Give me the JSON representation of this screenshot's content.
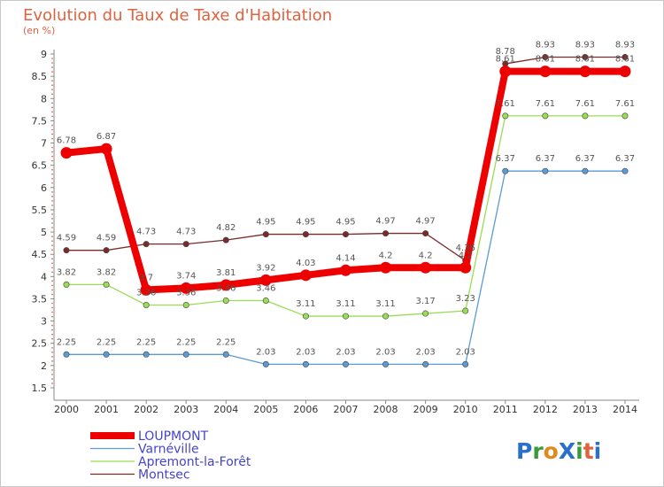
{
  "chart_data": {
    "type": "line",
    "title": "Evolution du Taux de Taxe d'Habitation",
    "subtitle": "(en %)",
    "x": [
      "2000",
      "2001",
      "2002",
      "2003",
      "2004",
      "2005",
      "2006",
      "2007",
      "2008",
      "2009",
      "2010",
      "2011",
      "2012",
      "2013",
      "2014"
    ],
    "yticks": [
      "1.5",
      "2",
      "2.5",
      "3",
      "3.5",
      "4",
      "4.5",
      "5",
      "5.5",
      "6",
      "6.5",
      "7",
      "7.5",
      "8",
      "8.5",
      "9"
    ],
    "ylim": [
      1.5,
      9
    ],
    "grid": false,
    "legend_position": "bottom-left",
    "series": [
      {
        "name": "LOUPMONT",
        "color": "#ee0000",
        "values": [
          6.78,
          6.87,
          3.7,
          3.74,
          3.81,
          3.92,
          4.03,
          4.14,
          4.2,
          4.2,
          4.2,
          8.61,
          8.61,
          8.61,
          8.61
        ],
        "labels": [
          "6.78",
          "6.87",
          "3.7",
          "3.74",
          "3.81",
          "3.92",
          "4.03",
          "4.14",
          "4.2",
          "4.2",
          "4.2",
          "8.61",
          "8.61",
          "8.61",
          "8.61"
        ]
      },
      {
        "name": "Varnéville",
        "color": "#5b9bd5",
        "values": [
          2.25,
          2.25,
          2.25,
          2.25,
          2.25,
          2.03,
          2.03,
          2.03,
          2.03,
          2.03,
          2.03,
          6.37,
          6.37,
          6.37,
          6.37
        ],
        "labels": [
          "2.25",
          "2.25",
          "2.25",
          "2.25",
          "2.25",
          "2.03",
          "2.03",
          "2.03",
          "2.03",
          "2.03",
          "2.03",
          "6.37",
          "6.37",
          "6.37",
          "6.37"
        ]
      },
      {
        "name": "Apremont-la-Forêt",
        "color": "#99dd55",
        "values": [
          3.82,
          3.82,
          3.36,
          3.36,
          3.46,
          3.46,
          3.11,
          3.11,
          3.11,
          3.17,
          3.23,
          7.61,
          7.61,
          7.61,
          7.61
        ],
        "labels": [
          "3.82",
          "3.82",
          "3.36",
          "3.36",
          "3.46",
          "3.46",
          "3.11",
          "3.11",
          "3.11",
          "3.17",
          "3.23",
          "7.61",
          "7.61",
          "7.61",
          "7.61"
        ]
      },
      {
        "name": "Montsec",
        "color": "#7b2a2a",
        "values": [
          4.59,
          4.59,
          4.73,
          4.73,
          4.82,
          4.95,
          4.95,
          4.95,
          4.97,
          4.97,
          4.36,
          8.78,
          8.93,
          8.93,
          8.93
        ],
        "labels": [
          "4.59",
          "4.59",
          "4.73",
          "4.73",
          "4.82",
          "4.95",
          "4.95",
          "4.95",
          "4.97",
          "4.97",
          "4.36",
          "8.78",
          "8.93",
          "8.93",
          "8.93"
        ]
      }
    ]
  },
  "logo": {
    "text": "ProXiti"
  }
}
